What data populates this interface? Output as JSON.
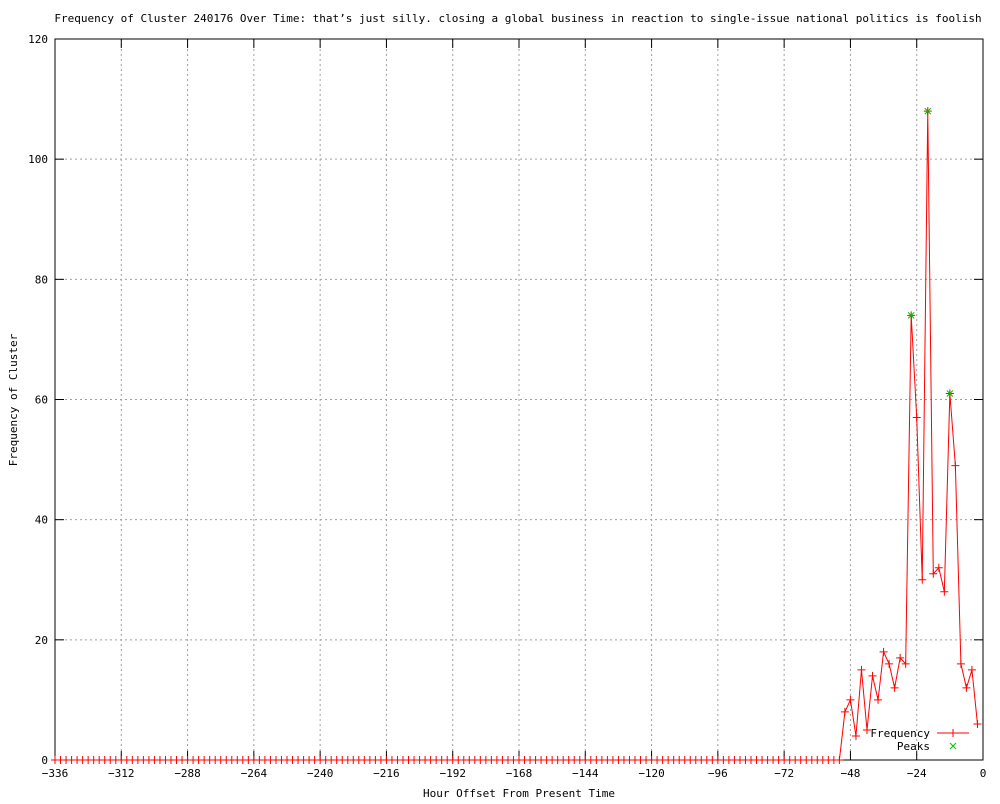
{
  "chart_data": {
    "type": "line",
    "title": "Frequency of Cluster 240176 Over Time: that’s just silly. closing a global business in reaction to single-issue national politics is foolish",
    "xlabel": "Hour Offset From Present Time",
    "ylabel": "Frequency of Cluster",
    "xlim": [
      -336,
      0
    ],
    "ylim": [
      0,
      120
    ],
    "xticks": [
      -336,
      -312,
      -288,
      -264,
      -240,
      -216,
      -192,
      -168,
      -144,
      -120,
      -96,
      -72,
      -48,
      -24,
      0
    ],
    "yticks": [
      0,
      20,
      40,
      60,
      80,
      100,
      120
    ],
    "grid": true,
    "legend_position": "bottom-right",
    "series": [
      {
        "name": "Frequency",
        "color": "#ff0000",
        "marker": "plus",
        "zero_range": [
          -336,
          -52
        ],
        "x": [
          -50,
          -48,
          -46,
          -44,
          -42,
          -40,
          -38,
          -36,
          -34,
          -32,
          -30,
          -28,
          -26,
          -24,
          -22,
          -20,
          -18,
          -16,
          -14,
          -12,
          -10,
          -8,
          -6,
          -4,
          -2
        ],
        "y": [
          8,
          10,
          4,
          15,
          5,
          14,
          10,
          18,
          16,
          12,
          17,
          16,
          74,
          57,
          30,
          108,
          31,
          32,
          28,
          61,
          49,
          16,
          12,
          15,
          6
        ]
      },
      {
        "name": "Peaks",
        "color": "#00c000",
        "marker": "x",
        "x": [
          -26,
          -20,
          -12
        ],
        "y": [
          74,
          108,
          61
        ]
      }
    ]
  }
}
